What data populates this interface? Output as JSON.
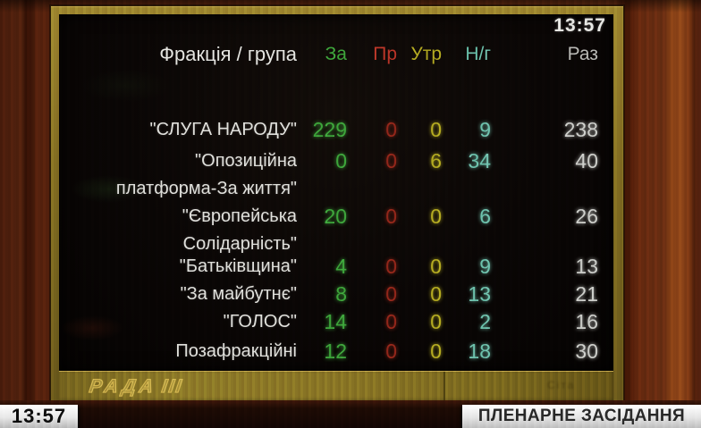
{
  "colors": {
    "za": "#41ab3e",
    "pr": "#c0392b",
    "pr_dim": "#9c2a1c",
    "utr": "#b9b023",
    "ng": "#74c6b2",
    "raz": "#cfd0cc",
    "label": "#e2e2de",
    "gold": "#8a7524",
    "wood": "#5c240e"
  },
  "board": {
    "clock": "13:57",
    "header": {
      "faction": "Фракція / група",
      "za": "За",
      "pr": "Пр",
      "utr": "Утр",
      "ng": "Н/г",
      "raz": "Раз"
    },
    "rows": [
      {
        "lines": [
          "\"СЛУГА НАРОДУ\""
        ],
        "za": "229",
        "pr": "0",
        "utr": "0",
        "ng": "9",
        "raz": "238"
      },
      {
        "lines": [
          "\"Опозиційна",
          "платформа-За життя\""
        ],
        "za": "0",
        "pr": "0",
        "utr": "6",
        "ng": "34",
        "raz": "40"
      },
      {
        "lines": [
          "\"Європейська",
          "Солідарність\""
        ],
        "za": "20",
        "pr": "0",
        "utr": "0",
        "ng": "6",
        "raz": "26"
      },
      {
        "lines": [
          "\"Батьківщина\""
        ],
        "za": "4",
        "pr": "0",
        "utr": "0",
        "ng": "9",
        "raz": "13"
      },
      {
        "lines": [
          "\"За майбутнє\""
        ],
        "za": "8",
        "pr": "0",
        "utr": "0",
        "ng": "13",
        "raz": "21"
      },
      {
        "lines": [
          "\"ГОЛОС\""
        ],
        "za": "14",
        "pr": "0",
        "utr": "0",
        "ng": "2",
        "raz": "16"
      },
      {
        "lines": [
          "Позафракційні"
        ],
        "za": "12",
        "pr": "0",
        "utr": "0",
        "ng": "18",
        "raz": "30"
      }
    ],
    "logo": "РАДА",
    "logo_bars": "III",
    "illegible_mark": "Сіта"
  },
  "lower_third": {
    "time": "13:57",
    "caption": "ПЛЕНАРНЕ ЗАСІДАННЯ"
  }
}
